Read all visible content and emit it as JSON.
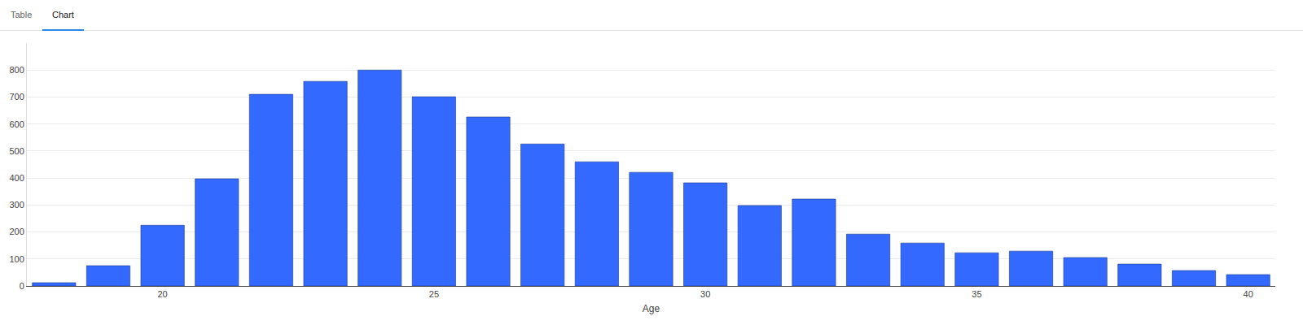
{
  "tabs": {
    "items": [
      "Table",
      "Chart"
    ],
    "active": "Chart"
  },
  "chart_data": {
    "type": "bar",
    "x_label": "Age",
    "x": [
      18,
      19,
      20,
      21,
      22,
      23,
      24,
      25,
      26,
      27,
      28,
      29,
      30,
      31,
      32,
      33,
      34,
      35,
      36,
      37,
      38,
      39,
      40
    ],
    "values": [
      12,
      75,
      225,
      397,
      710,
      758,
      800,
      701,
      626,
      526,
      460,
      421,
      382,
      298,
      322,
      192,
      159,
      123,
      129,
      105,
      81,
      57,
      42
    ],
    "color": "#3469ff",
    "xlim": [
      17.5,
      40.5
    ],
    "xticks": [
      20,
      25,
      30,
      35,
      40
    ],
    "ylim": [
      0,
      900
    ],
    "yticks": [
      0,
      100,
      200,
      300,
      400,
      500,
      600,
      700,
      800
    ],
    "grid": true
  }
}
